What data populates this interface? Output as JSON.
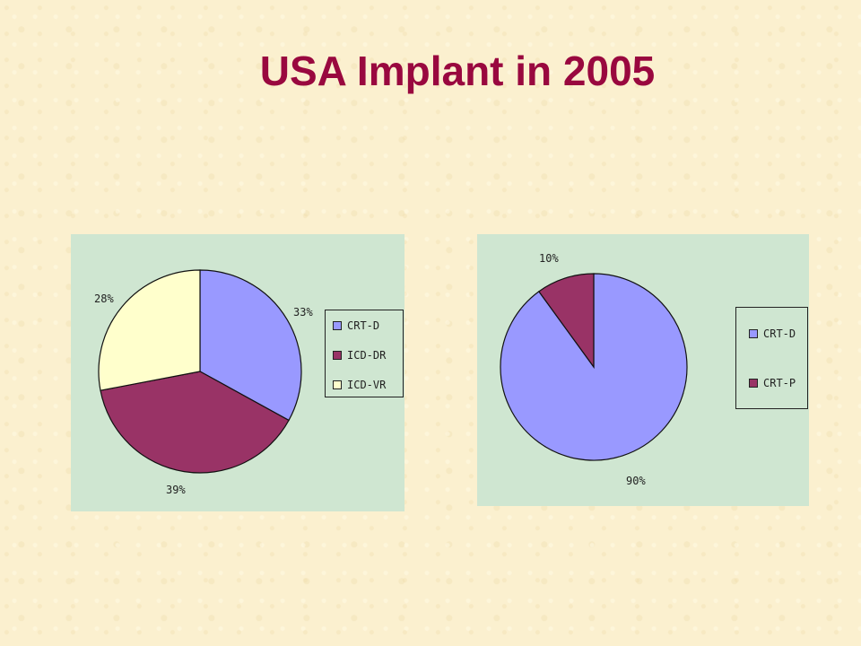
{
  "title": "USA  Implant in 2005",
  "chart_data": [
    {
      "type": "pie",
      "categories": [
        "CRT-D",
        "ICD-DR",
        "ICD-VR"
      ],
      "values": [
        33,
        39,
        28
      ],
      "data_labels": [
        "33%",
        "39%",
        "28%"
      ],
      "colors": [
        "#9999ff",
        "#993366",
        "#ffffcc"
      ],
      "legend": "right"
    },
    {
      "type": "pie",
      "categories": [
        "CRT-D",
        "CRT-P"
      ],
      "values": [
        90,
        10
      ],
      "data_labels": [
        "90%",
        "10%"
      ],
      "colors": [
        "#9999ff",
        "#993366"
      ],
      "legend": "right"
    }
  ]
}
